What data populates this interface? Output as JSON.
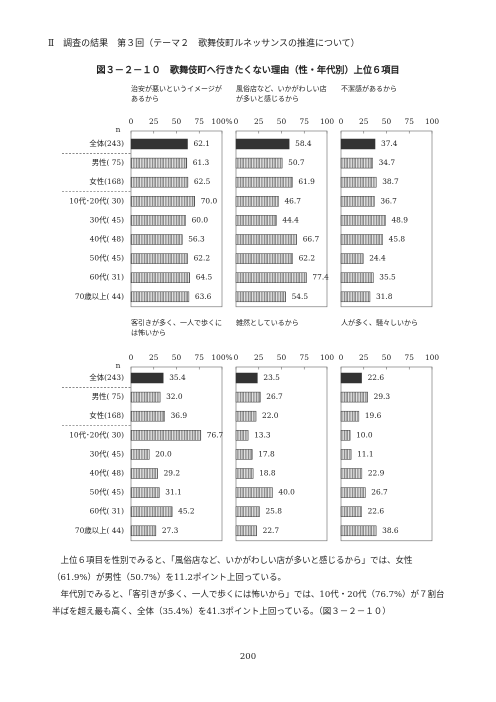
{
  "header": "Ⅱ　調査の結果　第３回（テーマ２　歌舞伎町ルネッサンスの推進について）",
  "figure_title": "図３－２－１０　歌舞伎町へ行きたくない理由（性・年代別）上位６項目",
  "chart_data": [
    {
      "type": "bar",
      "title": "治安が悪いというイメージがあるから",
      "n_label": "n",
      "categories": [
        "全体(243)",
        "男性( 75)",
        "女性(168)",
        "10代･20代( 30)",
        "30代( 45)",
        "40代( 48)",
        "50代( 45)",
        "60代( 31)",
        "70歳以上( 44)"
      ],
      "values": [
        62.1,
        61.3,
        62.5,
        70.0,
        60.0,
        56.3,
        62.2,
        64.5,
        63.6
      ],
      "value_labels": [
        "62.1",
        "61.3",
        "62.5",
        "70.0",
        "60.0",
        "56.3",
        "62.2",
        "64.5",
        "63.6"
      ],
      "xlim": [
        0,
        100
      ],
      "xticks": [
        0,
        25,
        50,
        75,
        {
          "value": 100,
          "label": "100%"
        }
      ],
      "color": "#555555",
      "highlight_color": "#333333"
    },
    {
      "type": "bar",
      "title": "風俗店など、いかがわしい店が多いと感じるから",
      "values": [
        58.4,
        50.7,
        61.9,
        46.7,
        44.4,
        66.7,
        62.2,
        77.4,
        54.5
      ],
      "value_labels": [
        "58.4",
        "50.7",
        "61.9",
        "46.7",
        "44.4",
        "66.7",
        "62.2",
        "77.4",
        "54.5"
      ],
      "xlim": [
        0,
        100
      ],
      "xticks": [
        0,
        25,
        50,
        75,
        100
      ],
      "color": "#555555",
      "highlight_color": "#333333"
    },
    {
      "type": "bar",
      "title": "不潔感があるから",
      "values": [
        37.4,
        34.7,
        38.7,
        36.7,
        48.9,
        45.8,
        24.4,
        35.5,
        31.8
      ],
      "value_labels": [
        "37.4",
        "34.7",
        "38.7",
        "36.7",
        "48.9",
        "45.8",
        "24.4",
        "35.5",
        "31.8"
      ],
      "xlim": [
        0,
        100
      ],
      "xticks": [
        0,
        25,
        50,
        75,
        100
      ],
      "color": "#555555",
      "highlight_color": "#333333"
    },
    {
      "type": "bar",
      "title": "客引きが多く、一人で歩くには怖いから",
      "n_label": "n",
      "categories": [
        "全体(243)",
        "男性( 75)",
        "女性(168)",
        "10代･20代( 30)",
        "30代( 45)",
        "40代( 48)",
        "50代( 45)",
        "60代( 31)",
        "70歳以上( 44)"
      ],
      "values": [
        35.4,
        32.0,
        36.9,
        76.7,
        20.0,
        29.2,
        31.1,
        45.2,
        27.3
      ],
      "value_labels": [
        "35.4",
        "32.0",
        "36.9",
        "76.7",
        "20.0",
        "29.2",
        "31.1",
        "45.2",
        "27.3"
      ],
      "xlim": [
        0,
        100
      ],
      "xticks": [
        0,
        25,
        50,
        75,
        {
          "value": 100,
          "label": "100%"
        }
      ],
      "color": "#555555",
      "highlight_color": "#333333"
    },
    {
      "type": "bar",
      "title": "雑然としているから",
      "values": [
        23.5,
        26.7,
        22.0,
        13.3,
        17.8,
        18.8,
        40.0,
        25.8,
        22.7
      ],
      "value_labels": [
        "23.5",
        "26.7",
        "22.0",
        "13.3",
        "17.8",
        "18.8",
        "40.0",
        "25.8",
        "22.7"
      ],
      "xlim": [
        0,
        100
      ],
      "xticks": [
        0,
        25,
        50,
        75,
        100
      ],
      "color": "#555555",
      "highlight_color": "#333333"
    },
    {
      "type": "bar",
      "title": "人が多く、騒々しいから",
      "values": [
        22.6,
        29.3,
        19.6,
        10.0,
        11.1,
        22.9,
        26.7,
        22.6,
        38.6
      ],
      "value_labels": [
        "22.6",
        "29.3",
        "19.6",
        "10.0",
        "11.1",
        "22.9",
        "26.7",
        "22.6",
        "38.6"
      ],
      "xlim": [
        0,
        100
      ],
      "xticks": [
        0,
        25,
        50,
        75,
        100
      ],
      "color": "#555555",
      "highlight_color": "#333333"
    }
  ],
  "body": [
    "上位６項目を性別でみると、「風俗店など、いかがわしい店が多いと感じるから」では、女性（61.9%）が男性（50.7%）を11.2ポイント上回っている。",
    "年代別でみると、「客引きが多く、一人で歩くには怖いから」では、10代・20代（76.7%）が７割台半ばを超え最も高く、全体（35.4%）を41.3ポイント上回っている。（図３－２－１０）"
  ],
  "page_number": "200"
}
